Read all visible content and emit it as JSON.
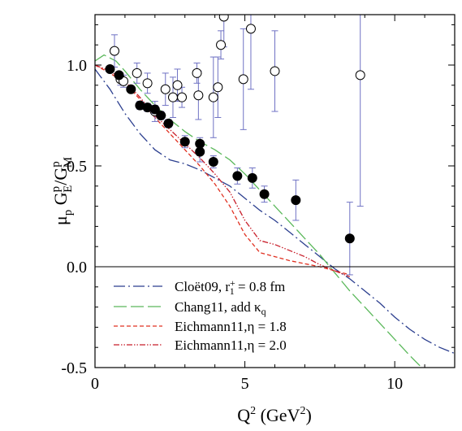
{
  "chart_data": {
    "type": "scatter",
    "title": "",
    "xlabel": "Q² (GeV²)",
    "ylabel": "μp GEp/GMp",
    "xlim": [
      0,
      12
    ],
    "ylim": [
      -0.5,
      1.25
    ],
    "x_ticks": [
      "0",
      "5",
      "10"
    ],
    "y_ticks": [
      "-0.5",
      "0.0",
      "0.5",
      "1.0"
    ],
    "x_tick_values": [
      0,
      5,
      10
    ],
    "y_tick_values": [
      -0.5,
      0.0,
      0.5,
      1.0
    ],
    "grid": false,
    "legend_position": "bottom-left",
    "colors": {
      "data_points": "#000000",
      "error_bars": "#6f72c4",
      "cloet": "#2c3f8f",
      "chang": "#5ab85a",
      "eichmann_18": "#e03020",
      "eichmann_20": "#c81e2a"
    },
    "series": [
      {
        "marker": "open-circle",
        "points": [
          {
            "x": 0.65,
            "y": 1.07,
            "err": 0.08
          },
          {
            "x": 0.85,
            "y": 0.93,
            "err": 0.03
          },
          {
            "x": 0.95,
            "y": 0.92,
            "err": 0.03
          },
          {
            "x": 1.4,
            "y": 0.96,
            "err": 0.05
          },
          {
            "x": 1.75,
            "y": 0.91,
            "err": 0.05
          },
          {
            "x": 2.0,
            "y": 0.77,
            "err": 0.05
          },
          {
            "x": 2.35,
            "y": 0.88,
            "err": 0.08
          },
          {
            "x": 2.6,
            "y": 0.84,
            "err": 0.1
          },
          {
            "x": 2.75,
            "y": 0.9,
            "err": 0.08
          },
          {
            "x": 2.9,
            "y": 0.84,
            "err": 0.05
          },
          {
            "x": 3.4,
            "y": 0.96,
            "err": 0.05
          },
          {
            "x": 3.45,
            "y": 0.85,
            "err": 0.12
          },
          {
            "x": 3.95,
            "y": 0.84,
            "err": 0.2
          },
          {
            "x": 4.1,
            "y": 0.89,
            "err": 0.15
          },
          {
            "x": 4.2,
            "y": 1.1,
            "err": 0.07
          },
          {
            "x": 4.3,
            "y": 1.24,
            "err": 0.15
          },
          {
            "x": 4.95,
            "y": 0.93,
            "err": 0.25
          },
          {
            "x": 5.2,
            "y": 1.18,
            "err": 0.3
          },
          {
            "x": 6.0,
            "y": 0.97,
            "err": 0.2
          },
          {
            "x": 8.85,
            "y": 0.95,
            "err": 0.65
          }
        ]
      },
      {
        "marker": "filled-circle",
        "points": [
          {
            "x": 0.5,
            "y": 0.98,
            "err": 0.01
          },
          {
            "x": 0.8,
            "y": 0.95,
            "err": 0.01
          },
          {
            "x": 1.2,
            "y": 0.88,
            "err": 0.01
          },
          {
            "x": 1.5,
            "y": 0.8,
            "err": 0.02
          },
          {
            "x": 1.75,
            "y": 0.79,
            "err": 0.02
          },
          {
            "x": 2.0,
            "y": 0.78,
            "err": 0.02
          },
          {
            "x": 2.2,
            "y": 0.75,
            "err": 0.02
          },
          {
            "x": 2.45,
            "y": 0.71,
            "err": 0.02
          },
          {
            "x": 3.0,
            "y": 0.62,
            "err": 0.03
          },
          {
            "x": 3.5,
            "y": 0.61,
            "err": 0.03
          },
          {
            "x": 3.5,
            "y": 0.57,
            "err": 0.05
          },
          {
            "x": 3.95,
            "y": 0.52,
            "err": 0.03
          },
          {
            "x": 4.75,
            "y": 0.45,
            "err": 0.04
          },
          {
            "x": 5.25,
            "y": 0.44,
            "err": 0.05
          },
          {
            "x": 5.65,
            "y": 0.36,
            "err": 0.04
          },
          {
            "x": 6.7,
            "y": 0.33,
            "err": 0.1
          },
          {
            "x": 8.5,
            "y": 0.14,
            "err": 0.18
          }
        ]
      },
      {
        "name": "Cloët09, r₁⁺ = 0.8 fm",
        "type": "line",
        "style": "dash-dot",
        "points": [
          [
            0,
            0.98
          ],
          [
            0.5,
            0.88
          ],
          [
            1,
            0.76
          ],
          [
            1.5,
            0.66
          ],
          [
            2,
            0.58
          ],
          [
            2.5,
            0.53
          ],
          [
            3,
            0.51
          ],
          [
            3.5,
            0.48
          ],
          [
            4,
            0.44
          ],
          [
            4.5,
            0.4
          ],
          [
            5,
            0.34
          ],
          [
            5.5,
            0.28
          ],
          [
            6,
            0.23
          ],
          [
            6.5,
            0.17
          ],
          [
            7,
            0.11
          ],
          [
            7.5,
            0.05
          ],
          [
            8,
            -0.01
          ],
          [
            8.5,
            -0.06
          ],
          [
            9,
            -0.12
          ],
          [
            9.5,
            -0.18
          ],
          [
            10,
            -0.25
          ],
          [
            10.5,
            -0.31
          ],
          [
            11,
            -0.36
          ],
          [
            11.5,
            -0.4
          ],
          [
            12,
            -0.43
          ]
        ]
      },
      {
        "name": "Chang11, add κq",
        "type": "line",
        "style": "long-dash",
        "points": [
          [
            0,
            1.02
          ],
          [
            0.3,
            1.05
          ],
          [
            0.7,
            1.02
          ],
          [
            1,
            0.97
          ],
          [
            1.5,
            0.88
          ],
          [
            2,
            0.8
          ],
          [
            2.5,
            0.73
          ],
          [
            3,
            0.67
          ],
          [
            3.5,
            0.62
          ],
          [
            4,
            0.58
          ],
          [
            4.5,
            0.53
          ],
          [
            5,
            0.46
          ],
          [
            5.5,
            0.38
          ],
          [
            6,
            0.3
          ],
          [
            6.5,
            0.22
          ],
          [
            7,
            0.14
          ],
          [
            7.5,
            0.06
          ],
          [
            8,
            -0.03
          ],
          [
            8.5,
            -0.12
          ],
          [
            9,
            -0.2
          ],
          [
            9.5,
            -0.28
          ],
          [
            10,
            -0.36
          ],
          [
            10.5,
            -0.44
          ],
          [
            10.9,
            -0.5
          ]
        ]
      },
      {
        "name": "Eichmann11,η = 1.8",
        "type": "line",
        "style": "short-dash",
        "points": [
          [
            0,
            1.0
          ],
          [
            0.5,
            0.96
          ],
          [
            1,
            0.91
          ],
          [
            1.5,
            0.83
          ],
          [
            2,
            0.74
          ],
          [
            2.5,
            0.66
          ],
          [
            3,
            0.58
          ],
          [
            3.5,
            0.5
          ],
          [
            4,
            0.41
          ],
          [
            4.5,
            0.3
          ],
          [
            5,
            0.16
          ],
          [
            5.5,
            0.07
          ],
          [
            6,
            0.05
          ],
          [
            6.5,
            0.03
          ],
          [
            7,
            0.015
          ],
          [
            7.5,
            0.0
          ],
          [
            8,
            -0.02
          ],
          [
            8.5,
            -0.04
          ]
        ]
      },
      {
        "name": "Eichmann11,η = 2.0",
        "type": "line",
        "style": "dash-dot-dot",
        "points": [
          [
            0,
            1.0
          ],
          [
            0.5,
            0.97
          ],
          [
            1,
            0.92
          ],
          [
            1.5,
            0.84
          ],
          [
            2,
            0.75
          ],
          [
            2.5,
            0.68
          ],
          [
            3,
            0.61
          ],
          [
            3.5,
            0.54
          ],
          [
            4,
            0.46
          ],
          [
            4.5,
            0.37
          ],
          [
            5,
            0.23
          ],
          [
            5.5,
            0.13
          ],
          [
            6,
            0.11
          ],
          [
            6.5,
            0.08
          ],
          [
            7,
            0.05
          ],
          [
            7.5,
            0.01
          ],
          [
            8,
            -0.02
          ],
          [
            8.5,
            -0.05
          ]
        ]
      }
    ]
  }
}
